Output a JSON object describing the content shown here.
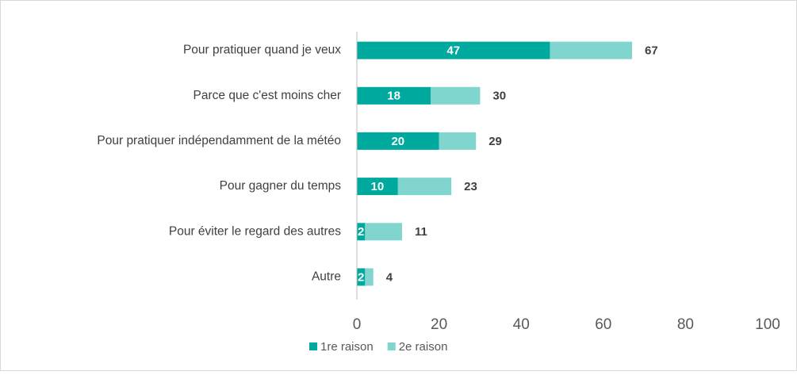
{
  "chart_data": {
    "type": "stacked-barh",
    "categories": [
      "Pour pratiquer quand je veux",
      "Parce que c'est moins cher",
      "Pour pratiquer indépendamment de la météo",
      "Pour gagner du temps",
      "Pour éviter le regard des autres",
      "Autre"
    ],
    "series": [
      {
        "name": "1re raison",
        "color": "#00a99d",
        "values": [
          47,
          18,
          20,
          10,
          2,
          2
        ]
      },
      {
        "name": "2e raison",
        "color": "#80d5ce",
        "values": [
          20,
          12,
          9,
          13,
          9,
          2
        ]
      }
    ],
    "totals": [
      67,
      30,
      29,
      23,
      11,
      4
    ],
    "xlim": [
      0,
      100
    ],
    "xticks": [
      0,
      20,
      40,
      60,
      80,
      100
    ],
    "legend": "bottom"
  }
}
